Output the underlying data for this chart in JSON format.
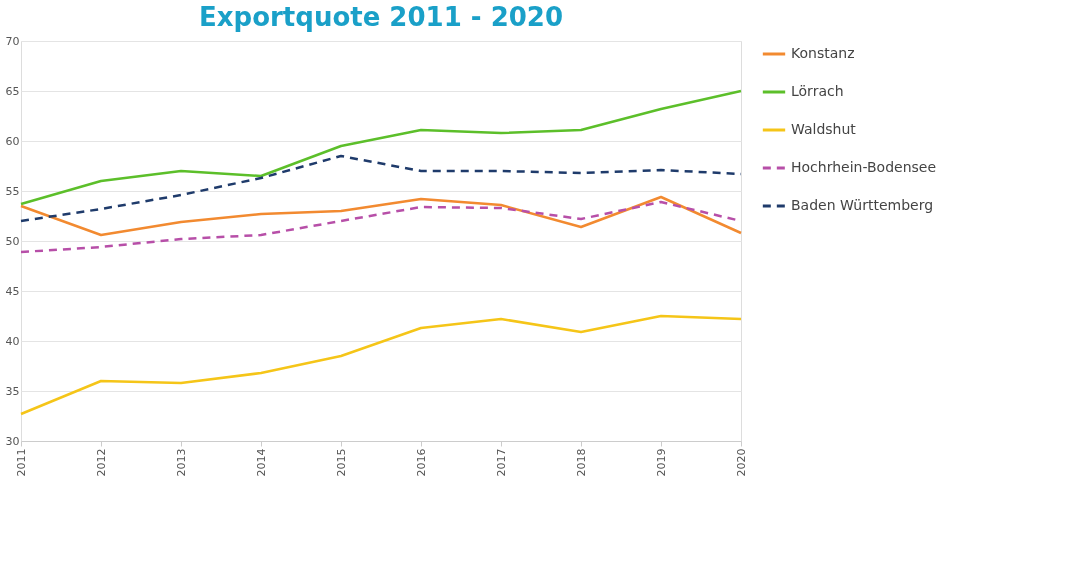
{
  "chart_data": {
    "type": "line",
    "title": "Exportquote 2011 - 2020",
    "categories": [
      "2011",
      "2012",
      "2013",
      "2014",
      "2015",
      "2016",
      "2017",
      "2018",
      "2019",
      "2020"
    ],
    "series": [
      {
        "name": "Konstanz",
        "color": "#f28a30",
        "line_style": "solid",
        "values": [
          53.5,
          50.6,
          51.9,
          52.7,
          53.0,
          54.2,
          53.6,
          51.4,
          54.4,
          50.8
        ]
      },
      {
        "name": "Lörrach",
        "color": "#5cbf2a",
        "line_style": "solid",
        "values": [
          53.7,
          56.0,
          57.0,
          56.5,
          59.5,
          61.1,
          60.8,
          61.1,
          63.2,
          65.0
        ]
      },
      {
        "name": "Waldshut",
        "color": "#f5c518",
        "line_style": "solid",
        "values": [
          32.7,
          36.0,
          35.8,
          36.8,
          38.5,
          41.3,
          42.2,
          40.9,
          42.5,
          42.2
        ]
      },
      {
        "name": "Hochrhein-Bodensee",
        "color": "#b74fa8",
        "line_style": "dashed",
        "values": [
          48.9,
          49.4,
          50.2,
          50.6,
          52.0,
          53.4,
          53.3,
          52.2,
          53.9,
          52.0
        ]
      },
      {
        "name": "Baden Württemberg",
        "color": "#1f3b6b",
        "line_style": "dashed",
        "values": [
          52.0,
          53.2,
          54.6,
          56.3,
          58.5,
          57.0,
          57.0,
          56.8,
          57.1,
          56.7
        ]
      }
    ],
    "ylim": [
      30,
      70
    ],
    "yticks": [
      30,
      35,
      40,
      45,
      50,
      55,
      60,
      65,
      70
    ],
    "grid": "y",
    "legend": "right",
    "marker": "none"
  }
}
